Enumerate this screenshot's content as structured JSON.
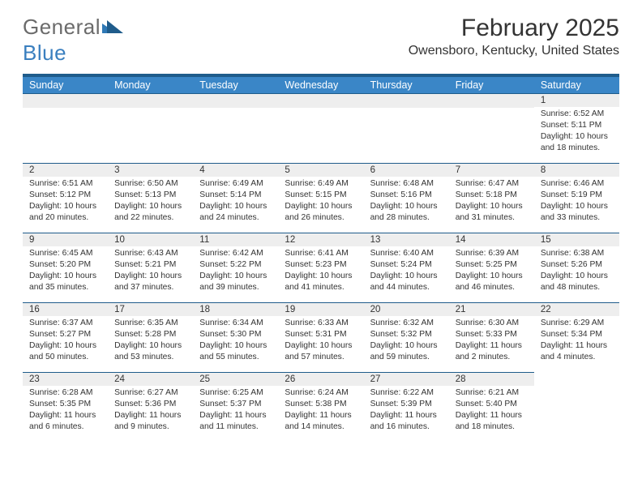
{
  "brand": {
    "word1": "General",
    "word2": "Blue"
  },
  "title": "February 2025",
  "location": "Owensboro, Kentucky, United States",
  "colors": {
    "header_bg": "#3a86c7",
    "band": "#1f5c8b",
    "daynum_bg": "#eeeeee",
    "text": "#333333",
    "logo_gray": "#6b6b6b",
    "logo_blue": "#3a7fbf"
  },
  "dayNames": [
    "Sunday",
    "Monday",
    "Tuesday",
    "Wednesday",
    "Thursday",
    "Friday",
    "Saturday"
  ],
  "weeks": [
    [
      {
        "blank": true
      },
      {
        "blank": true
      },
      {
        "blank": true
      },
      {
        "blank": true
      },
      {
        "blank": true
      },
      {
        "blank": true
      },
      {
        "day": "1",
        "sunrise": "Sunrise: 6:52 AM",
        "sunset": "Sunset: 5:11 PM",
        "daylight": "Daylight: 10 hours and 18 minutes."
      }
    ],
    [
      {
        "day": "2",
        "sunrise": "Sunrise: 6:51 AM",
        "sunset": "Sunset: 5:12 PM",
        "daylight": "Daylight: 10 hours and 20 minutes."
      },
      {
        "day": "3",
        "sunrise": "Sunrise: 6:50 AM",
        "sunset": "Sunset: 5:13 PM",
        "daylight": "Daylight: 10 hours and 22 minutes."
      },
      {
        "day": "4",
        "sunrise": "Sunrise: 6:49 AM",
        "sunset": "Sunset: 5:14 PM",
        "daylight": "Daylight: 10 hours and 24 minutes."
      },
      {
        "day": "5",
        "sunrise": "Sunrise: 6:49 AM",
        "sunset": "Sunset: 5:15 PM",
        "daylight": "Daylight: 10 hours and 26 minutes."
      },
      {
        "day": "6",
        "sunrise": "Sunrise: 6:48 AM",
        "sunset": "Sunset: 5:16 PM",
        "daylight": "Daylight: 10 hours and 28 minutes."
      },
      {
        "day": "7",
        "sunrise": "Sunrise: 6:47 AM",
        "sunset": "Sunset: 5:18 PM",
        "daylight": "Daylight: 10 hours and 31 minutes."
      },
      {
        "day": "8",
        "sunrise": "Sunrise: 6:46 AM",
        "sunset": "Sunset: 5:19 PM",
        "daylight": "Daylight: 10 hours and 33 minutes."
      }
    ],
    [
      {
        "day": "9",
        "sunrise": "Sunrise: 6:45 AM",
        "sunset": "Sunset: 5:20 PM",
        "daylight": "Daylight: 10 hours and 35 minutes."
      },
      {
        "day": "10",
        "sunrise": "Sunrise: 6:43 AM",
        "sunset": "Sunset: 5:21 PM",
        "daylight": "Daylight: 10 hours and 37 minutes."
      },
      {
        "day": "11",
        "sunrise": "Sunrise: 6:42 AM",
        "sunset": "Sunset: 5:22 PM",
        "daylight": "Daylight: 10 hours and 39 minutes."
      },
      {
        "day": "12",
        "sunrise": "Sunrise: 6:41 AM",
        "sunset": "Sunset: 5:23 PM",
        "daylight": "Daylight: 10 hours and 41 minutes."
      },
      {
        "day": "13",
        "sunrise": "Sunrise: 6:40 AM",
        "sunset": "Sunset: 5:24 PM",
        "daylight": "Daylight: 10 hours and 44 minutes."
      },
      {
        "day": "14",
        "sunrise": "Sunrise: 6:39 AM",
        "sunset": "Sunset: 5:25 PM",
        "daylight": "Daylight: 10 hours and 46 minutes."
      },
      {
        "day": "15",
        "sunrise": "Sunrise: 6:38 AM",
        "sunset": "Sunset: 5:26 PM",
        "daylight": "Daylight: 10 hours and 48 minutes."
      }
    ],
    [
      {
        "day": "16",
        "sunrise": "Sunrise: 6:37 AM",
        "sunset": "Sunset: 5:27 PM",
        "daylight": "Daylight: 10 hours and 50 minutes."
      },
      {
        "day": "17",
        "sunrise": "Sunrise: 6:35 AM",
        "sunset": "Sunset: 5:28 PM",
        "daylight": "Daylight: 10 hours and 53 minutes."
      },
      {
        "day": "18",
        "sunrise": "Sunrise: 6:34 AM",
        "sunset": "Sunset: 5:30 PM",
        "daylight": "Daylight: 10 hours and 55 minutes."
      },
      {
        "day": "19",
        "sunrise": "Sunrise: 6:33 AM",
        "sunset": "Sunset: 5:31 PM",
        "daylight": "Daylight: 10 hours and 57 minutes."
      },
      {
        "day": "20",
        "sunrise": "Sunrise: 6:32 AM",
        "sunset": "Sunset: 5:32 PM",
        "daylight": "Daylight: 10 hours and 59 minutes."
      },
      {
        "day": "21",
        "sunrise": "Sunrise: 6:30 AM",
        "sunset": "Sunset: 5:33 PM",
        "daylight": "Daylight: 11 hours and 2 minutes."
      },
      {
        "day": "22",
        "sunrise": "Sunrise: 6:29 AM",
        "sunset": "Sunset: 5:34 PM",
        "daylight": "Daylight: 11 hours and 4 minutes."
      }
    ],
    [
      {
        "day": "23",
        "sunrise": "Sunrise: 6:28 AM",
        "sunset": "Sunset: 5:35 PM",
        "daylight": "Daylight: 11 hours and 6 minutes."
      },
      {
        "day": "24",
        "sunrise": "Sunrise: 6:27 AM",
        "sunset": "Sunset: 5:36 PM",
        "daylight": "Daylight: 11 hours and 9 minutes."
      },
      {
        "day": "25",
        "sunrise": "Sunrise: 6:25 AM",
        "sunset": "Sunset: 5:37 PM",
        "daylight": "Daylight: 11 hours and 11 minutes."
      },
      {
        "day": "26",
        "sunrise": "Sunrise: 6:24 AM",
        "sunset": "Sunset: 5:38 PM",
        "daylight": "Daylight: 11 hours and 14 minutes."
      },
      {
        "day": "27",
        "sunrise": "Sunrise: 6:22 AM",
        "sunset": "Sunset: 5:39 PM",
        "daylight": "Daylight: 11 hours and 16 minutes."
      },
      {
        "day": "28",
        "sunrise": "Sunrise: 6:21 AM",
        "sunset": "Sunset: 5:40 PM",
        "daylight": "Daylight: 11 hours and 18 minutes."
      },
      {
        "blank": true,
        "noBand": true
      }
    ]
  ]
}
